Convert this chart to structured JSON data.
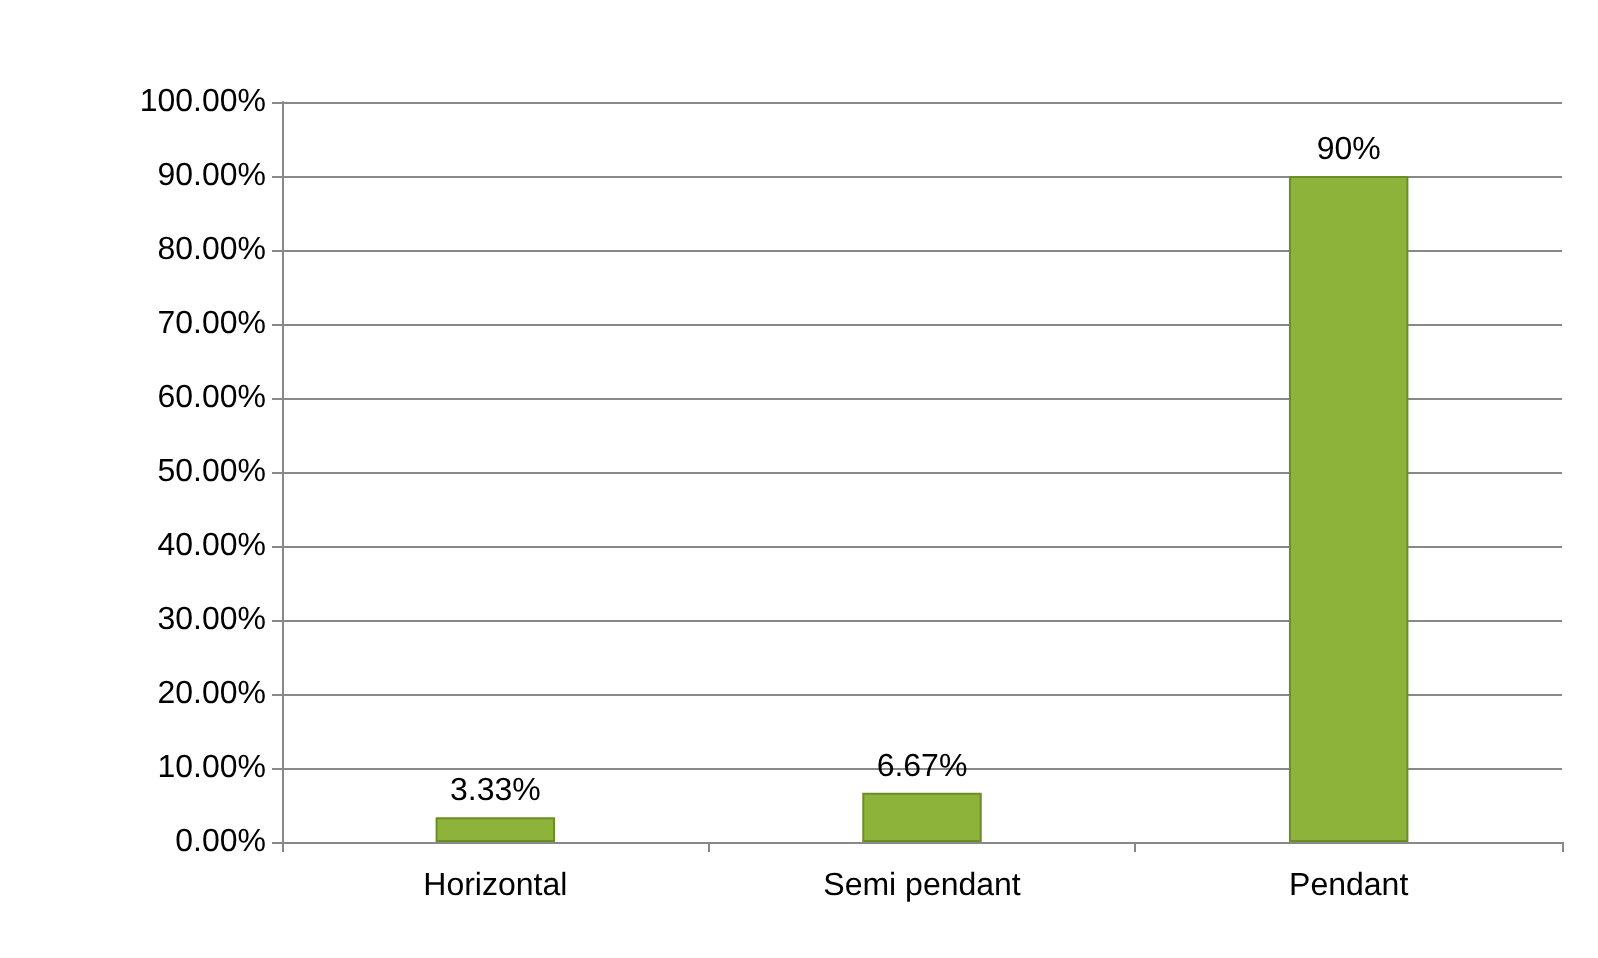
{
  "chart_data": {
    "type": "bar",
    "categories": [
      "Horizontal",
      "Semi pendant",
      "Pendant"
    ],
    "values": [
      3.33,
      6.67,
      90
    ],
    "value_labels": [
      "3.33%",
      "6.67%",
      "90%"
    ],
    "color": "#8db33a",
    "ylim": [
      0,
      100
    ],
    "yticks": [
      {
        "value": 0,
        "label": "0.00%"
      },
      {
        "value": 10,
        "label": "10.00%"
      },
      {
        "value": 20,
        "label": "20.00%"
      },
      {
        "value": 30,
        "label": "30.00%"
      },
      {
        "value": 40,
        "label": "40.00%"
      },
      {
        "value": 50,
        "label": "50.00%"
      },
      {
        "value": 60,
        "label": "60.00%"
      },
      {
        "value": 70,
        "label": "70.00%"
      },
      {
        "value": 80,
        "label": "80.00%"
      },
      {
        "value": 90,
        "label": "90.00%"
      },
      {
        "value": 100,
        "label": "100.00%"
      }
    ],
    "grid": "y"
  }
}
